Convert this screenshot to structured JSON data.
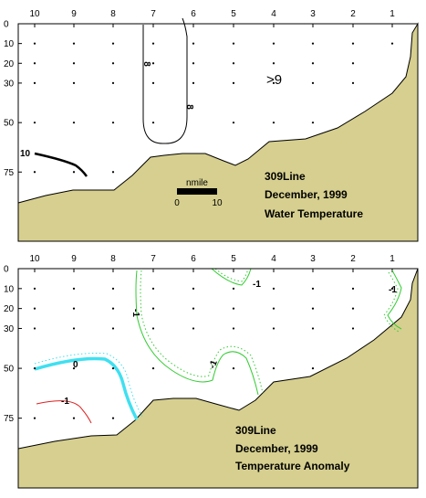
{
  "chart_data": [
    {
      "type": "contour",
      "x_ticks": [
        "10",
        "9",
        "8",
        "7",
        "6",
        "5",
        "4",
        "3",
        "2",
        "1"
      ],
      "y_ticks": [
        "0",
        "10",
        "20",
        "30",
        "50",
        "75"
      ],
      "ylim": [
        0,
        110
      ],
      "y_inverted": true,
      "contour_labels": [
        "8",
        "8",
        "10"
      ],
      "region_label": ">9",
      "scale_bar": {
        "title": "nmile",
        "start": "0",
        "end": "10"
      },
      "annotations": [
        "309Line",
        "December, 1999",
        "Water Temperature"
      ],
      "colors": {
        "seabed": "#d6cf8f",
        "contour": "#000000"
      }
    },
    {
      "type": "contour",
      "x_ticks": [
        "10",
        "9",
        "8",
        "7",
        "6",
        "5",
        "4",
        "3",
        "2",
        "1"
      ],
      "y_ticks": [
        "0",
        "10",
        "20",
        "30",
        "50",
        "75"
      ],
      "ylim": [
        0,
        110
      ],
      "y_inverted": true,
      "contour_labels": [
        "0",
        "-1",
        "-1",
        "-1",
        "-1",
        "-1"
      ],
      "annotations": [
        "309Line",
        "December, 1999",
        "Temperature Anomaly"
      ],
      "colors": {
        "seabed": "#d6cf8f",
        "zero": "#3fe0f0",
        "negative": "#33cc33",
        "strong_negative": "#dd2222"
      }
    }
  ]
}
